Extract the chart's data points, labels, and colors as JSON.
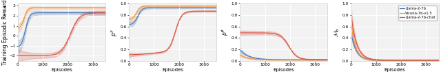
{
  "fig_width": 6.4,
  "fig_height": 1.08,
  "dpi": 100,
  "colors": {
    "llama": "#4c78b5",
    "vicuna": "#f0923a",
    "llama_chat": "#d94f3d"
  },
  "legend_labels": [
    "Llama-2-7b",
    "Vicuna-7b-v1.5",
    "Llama-2-7b-chat"
  ],
  "panel_ylabels": [
    "Training Episodic Reward",
    "$p^\\mathcal{F}$",
    "$p^\\phi$",
    "$\\mathcal{M}_b$"
  ],
  "xlabel": "Episodes",
  "panel1_ylim": [
    -2.5,
    3.2
  ],
  "panel2_ylim": [
    0.0,
    1.0
  ],
  "panel3_ylim": [
    0.0,
    1.0
  ],
  "panel4_ylim": [
    0.0,
    1.0
  ]
}
